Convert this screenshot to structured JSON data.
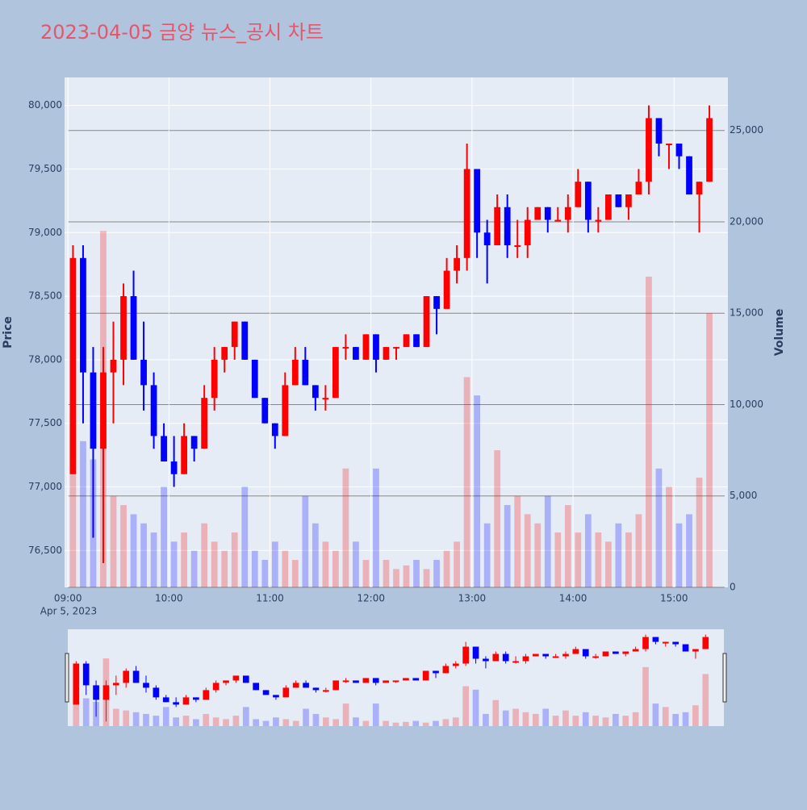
{
  "chart_data": {
    "type": "candlestick",
    "title": "2023-04-05 금양 뉴스_공시 차트",
    "x_date_label": "Apr 5, 2023",
    "y_title": "Price",
    "y2_title": "Volume",
    "increasing_color": "#ff0000",
    "decreasing_color": "#0000ff",
    "x": [
      "09:00",
      "09:06",
      "09:12",
      "09:18",
      "09:24",
      "09:30",
      "09:36",
      "09:42",
      "09:48",
      "09:54",
      "10:00",
      "10:06",
      "10:12",
      "10:18",
      "10:24",
      "10:30",
      "10:36",
      "10:42",
      "10:48",
      "10:54",
      "11:00",
      "11:06",
      "11:12",
      "11:18",
      "11:24",
      "11:30",
      "11:36",
      "11:42",
      "11:48",
      "11:54",
      "12:00",
      "12:06",
      "12:12",
      "12:18",
      "12:24",
      "12:30",
      "12:36",
      "12:42",
      "12:48",
      "12:54",
      "13:00",
      "13:06",
      "13:12",
      "13:18",
      "13:24",
      "13:30",
      "13:36",
      "13:42",
      "13:48",
      "13:54",
      "14:00",
      "14:06",
      "14:12",
      "14:18",
      "14:24",
      "14:30",
      "14:36",
      "14:42",
      "14:48",
      "14:54",
      "15:00",
      "15:06",
      "15:12",
      "15:18"
    ],
    "open": [
      77100,
      78800,
      77900,
      77300,
      77900,
      78000,
      78500,
      78000,
      77800,
      77400,
      77200,
      77100,
      77400,
      77300,
      77700,
      78000,
      78100,
      78300,
      78000,
      77700,
      77500,
      77400,
      77800,
      78000,
      77800,
      77700,
      77700,
      78100,
      78100,
      78000,
      78200,
      78000,
      78100,
      78100,
      78200,
      78100,
      78500,
      78400,
      78700,
      78800,
      79500,
      79000,
      78900,
      79200,
      78900,
      78900,
      79100,
      79200,
      79100,
      79100,
      79200,
      79400,
      79100,
      79100,
      79300,
      79200,
      79300,
      79400,
      79900,
      79700,
      79700,
      79600,
      79300,
      79400
    ],
    "high": [
      78900,
      78900,
      78100,
      78100,
      78300,
      78600,
      78700,
      78300,
      77900,
      77500,
      77400,
      77500,
      77400,
      77800,
      78100,
      78100,
      78300,
      78300,
      78000,
      77700,
      77500,
      77900,
      78100,
      78100,
      77800,
      77800,
      78100,
      78200,
      78100,
      78200,
      78200,
      78100,
      78100,
      78200,
      78200,
      78500,
      78500,
      78800,
      78900,
      79700,
      79500,
      79100,
      79300,
      79300,
      79100,
      79200,
      79200,
      79200,
      79200,
      79300,
      79500,
      79400,
      79200,
      79300,
      79300,
      79300,
      79500,
      80000,
      79900,
      79700,
      79700,
      79600,
      79400,
      80000
    ],
    "low": [
      77100,
      77500,
      76600,
      76400,
      77500,
      77800,
      78000,
      77600,
      77300,
      77200,
      77000,
      77100,
      77200,
      77300,
      77600,
      77900,
      78000,
      78000,
      77700,
      77500,
      77300,
      77400,
      77800,
      77800,
      77600,
      77600,
      77700,
      78000,
      78000,
      78000,
      77900,
      78000,
      78000,
      78100,
      78100,
      78100,
      78200,
      78400,
      78600,
      78700,
      78800,
      78600,
      78900,
      78800,
      78800,
      78800,
      79100,
      79000,
      79100,
      79000,
      79200,
      79000,
      79000,
      79100,
      79200,
      79100,
      79300,
      79300,
      79600,
      79500,
      79500,
      79300,
      79000,
      79400
    ],
    "close": [
      78800,
      77900,
      77300,
      77900,
      78000,
      78500,
      78000,
      77800,
      77400,
      77200,
      77100,
      77400,
      77300,
      77700,
      78000,
      78100,
      78300,
      78000,
      77700,
      77500,
      77400,
      77800,
      78000,
      77800,
      77700,
      77700,
      78100,
      78100,
      78000,
      78200,
      78000,
      78100,
      78100,
      78200,
      78100,
      78500,
      78400,
      78700,
      78800,
      79500,
      79000,
      78900,
      79200,
      78900,
      78900,
      79100,
      79200,
      79100,
      79100,
      79200,
      79400,
      79100,
      79100,
      79300,
      79200,
      79300,
      79400,
      79900,
      79700,
      79700,
      79600,
      79300,
      79400,
      79900
    ],
    "volume": [
      9500,
      8000,
      7000,
      19500,
      5000,
      4500,
      4000,
      3500,
      3000,
      5500,
      2500,
      3000,
      2000,
      3500,
      2500,
      2000,
      3000,
      5500,
      2000,
      1500,
      2500,
      2000,
      1500,
      5000,
      3500,
      2500,
      2000,
      6500,
      2500,
      1500,
      6500,
      1500,
      1000,
      1200,
      1500,
      1000,
      1500,
      2000,
      2500,
      11500,
      10500,
      3500,
      7500,
      4500,
      5000,
      4000,
      3500,
      5000,
      3000,
      4500,
      3000,
      4000,
      3000,
      2500,
      3500,
      3000,
      4000,
      17000,
      6500,
      5500,
      3500,
      4000,
      6000,
      15000
    ],
    "xlim": [
      "08:58",
      "15:32"
    ],
    "xticks": [
      "09:00",
      "10:00",
      "11:00",
      "12:00",
      "13:00",
      "14:00",
      "15:00"
    ],
    "ylim": [
      76210,
      80220
    ],
    "yticks": [
      {
        "value": 76500,
        "label": "76,500"
      },
      {
        "value": 77000,
        "label": "77,000"
      },
      {
        "value": 77500,
        "label": "77,500"
      },
      {
        "value": 78000,
        "label": "78,000"
      },
      {
        "value": 78500,
        "label": "78,500"
      },
      {
        "value": 79000,
        "label": "79,000"
      },
      {
        "value": 79500,
        "label": "79,500"
      },
      {
        "value": 80000,
        "label": "80,000"
      }
    ],
    "y2lim": [
      0,
      27900
    ],
    "y2ticks": [
      0,
      {
        "value": 5000,
        "label": "5,000"
      },
      {
        "value": 10000,
        "label": "10,000"
      },
      {
        "value": 15000,
        "label": "15,000"
      },
      {
        "value": 20000,
        "label": "20,000"
      },
      {
        "value": 25000,
        "label": "25,000"
      }
    ],
    "grid": true
  }
}
